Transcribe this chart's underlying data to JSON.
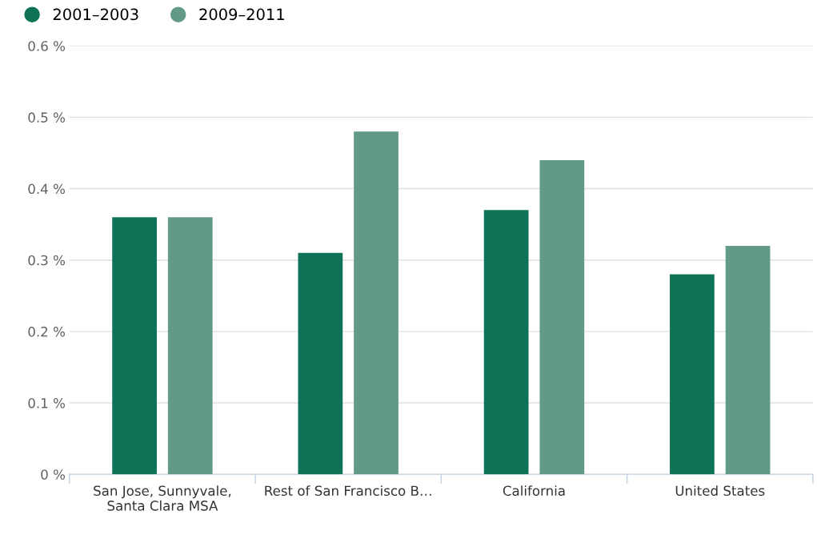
{
  "chart_data": {
    "type": "bar",
    "categories": [
      "San Jose, Sunnyvale,\nSanta Clara MSA",
      "Rest of San Francisco B…",
      "California",
      "United States"
    ],
    "series": [
      {
        "name": "2001–2003",
        "color": "#0e7356",
        "values": [
          0.36,
          0.31,
          0.37,
          0.28
        ]
      },
      {
        "name": "2009–2011",
        "color": "#629a86",
        "values": [
          0.36,
          0.48,
          0.44,
          0.32
        ]
      }
    ],
    "ylim": [
      0,
      0.6
    ],
    "yticks": [
      {
        "value": 0,
        "label": "0 %"
      },
      {
        "value": 0.1,
        "label": "0.1 %"
      },
      {
        "value": 0.2,
        "label": "0.2 %"
      },
      {
        "value": 0.3,
        "label": "0.3 %"
      },
      {
        "value": 0.4,
        "label": "0.4 %"
      },
      {
        "value": 0.5,
        "label": "0.5 %"
      },
      {
        "value": 0.6,
        "label": "0.6 %"
      }
    ],
    "grid": "y",
    "legend": "top left"
  }
}
